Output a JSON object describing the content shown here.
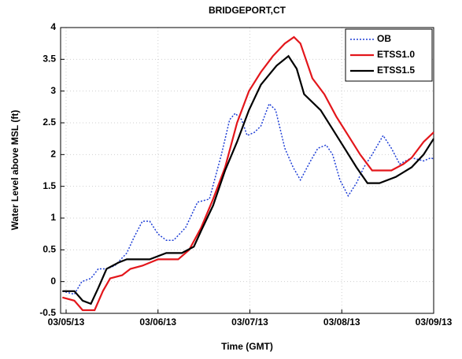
{
  "chart_data": {
    "type": "line",
    "title": "BRIDGEPORT,CT",
    "xlabel": "Time (GMT)",
    "ylabel": "Water Level above MSL (ft)",
    "xlim": [
      -0.06,
      4.0
    ],
    "ylim": [
      -0.5,
      4
    ],
    "xticks": [
      {
        "value": 0,
        "label": "03/05/13"
      },
      {
        "value": 1,
        "label": "03/06/13"
      },
      {
        "value": 2,
        "label": "03/07/13"
      },
      {
        "value": 3,
        "label": "03/08/13"
      },
      {
        "value": 4,
        "label": "03/09/13"
      }
    ],
    "yticks": [
      -0.5,
      0,
      0.5,
      1,
      1.5,
      2,
      2.5,
      3,
      3.5,
      4
    ],
    "grid": true,
    "legend": "upper right",
    "series": [
      {
        "name": "OB",
        "color": "#1f3fd6",
        "linestyle": "dotted",
        "x": [
          -0.04,
          0.09,
          0.17,
          0.27,
          0.35,
          0.44,
          0.53,
          0.66,
          0.74,
          0.83,
          0.91,
          1.0,
          1.09,
          1.17,
          1.3,
          1.43,
          1.56,
          1.69,
          1.78,
          1.84,
          1.91,
          1.97,
          2.05,
          2.12,
          2.21,
          2.28,
          2.38,
          2.47,
          2.55,
          2.66,
          2.74,
          2.83,
          2.9,
          2.98,
          3.07,
          3.16,
          3.24,
          3.33,
          3.45,
          3.54,
          3.63,
          3.76,
          3.89,
          3.97,
          4.0
        ],
        "values": [
          -0.15,
          -0.2,
          0.0,
          0.05,
          0.2,
          0.2,
          0.25,
          0.45,
          0.7,
          0.95,
          0.95,
          0.75,
          0.65,
          0.65,
          0.85,
          1.25,
          1.3,
          2.0,
          2.55,
          2.65,
          2.55,
          2.3,
          2.35,
          2.45,
          2.8,
          2.7,
          2.1,
          1.8,
          1.6,
          1.9,
          2.1,
          2.15,
          2.0,
          1.6,
          1.35,
          1.55,
          1.8,
          2.0,
          2.3,
          2.1,
          1.85,
          1.95,
          1.9,
          1.95,
          1.93
        ]
      },
      {
        "name": "ETSS1.0",
        "color": "#e3161b",
        "linestyle": "solid",
        "x": [
          -0.04,
          0.09,
          0.18,
          0.31,
          0.4,
          0.48,
          0.61,
          0.7,
          0.83,
          1.0,
          1.22,
          1.34,
          1.47,
          1.6,
          1.73,
          1.86,
          1.99,
          2.12,
          2.25,
          2.38,
          2.48,
          2.55,
          2.68,
          2.81,
          2.94,
          3.07,
          3.2,
          3.33,
          3.54,
          3.67,
          3.76,
          3.89,
          4.0
        ],
        "values": [
          -0.25,
          -0.3,
          -0.45,
          -0.45,
          -0.15,
          0.05,
          0.1,
          0.2,
          0.25,
          0.35,
          0.35,
          0.5,
          0.85,
          1.3,
          1.8,
          2.5,
          3.0,
          3.3,
          3.55,
          3.75,
          3.85,
          3.75,
          3.2,
          2.95,
          2.6,
          2.3,
          2.0,
          1.75,
          1.75,
          1.85,
          1.95,
          2.2,
          2.35
        ]
      },
      {
        "name": "ETSS1.5",
        "color": "#000000",
        "linestyle": "solid",
        "x": [
          -0.04,
          0.09,
          0.18,
          0.27,
          0.35,
          0.44,
          0.57,
          0.66,
          0.91,
          1.09,
          1.26,
          1.39,
          1.47,
          1.6,
          1.73,
          1.86,
          1.99,
          2.12,
          2.29,
          2.42,
          2.51,
          2.59,
          2.77,
          2.9,
          3.03,
          3.16,
          3.28,
          3.41,
          3.59,
          3.76,
          3.89,
          4.0
        ],
        "values": [
          -0.15,
          -0.15,
          -0.3,
          -0.35,
          -0.1,
          0.2,
          0.3,
          0.35,
          0.35,
          0.45,
          0.45,
          0.55,
          0.8,
          1.2,
          1.75,
          2.2,
          2.7,
          3.1,
          3.4,
          3.55,
          3.35,
          2.95,
          2.7,
          2.4,
          2.1,
          1.8,
          1.55,
          1.55,
          1.65,
          1.8,
          2.0,
          2.25
        ]
      }
    ]
  }
}
